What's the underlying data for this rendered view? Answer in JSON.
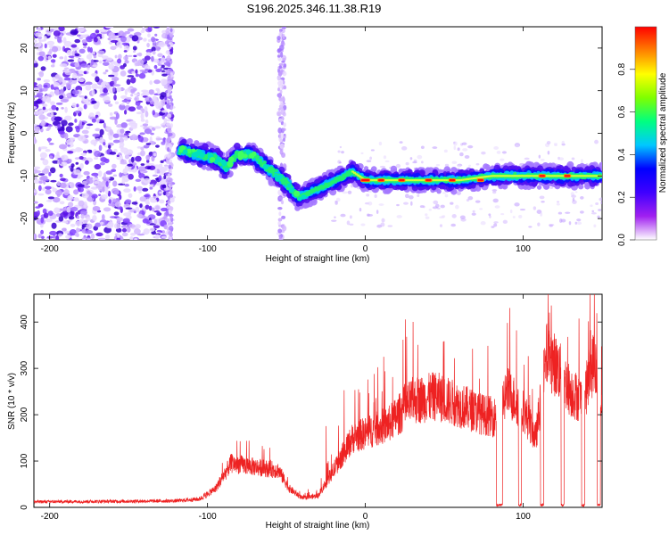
{
  "title": "S196.2025.346.11.38.R19",
  "chart_data": [
    {
      "type": "heatmap",
      "xlabel": "Height of straight line (km)",
      "ylabel": "Frequency (Hz)",
      "xlim": [
        -210,
        150
      ],
      "ylim": [
        -25,
        25
      ],
      "xticks": [
        -200,
        -100,
        0,
        100
      ],
      "yticks": [
        -20,
        -10,
        0,
        10,
        20
      ],
      "colorbar": {
        "label": "Normalized spectral amplitude",
        "range": [
          0,
          1
        ],
        "ticks": [
          "0.0",
          "0.2",
          "0.4",
          "0.6",
          "0.8"
        ],
        "stops": [
          "#ffffff",
          "#a020f0",
          "#3f00ff",
          "#0000ff",
          "#00c8ff",
          "#00ff80",
          "#7fff00",
          "#ffff00",
          "#ff8000",
          "#ff0000"
        ]
      },
      "ridge": [
        {
          "x": -118,
          "y": -4
        },
        {
          "x": -105,
          "y": -5
        },
        {
          "x": -95,
          "y": -6
        },
        {
          "x": -88,
          "y": -8
        },
        {
          "x": -82,
          "y": -5
        },
        {
          "x": -72,
          "y": -5
        },
        {
          "x": -62,
          "y": -8
        },
        {
          "x": -52,
          "y": -11
        },
        {
          "x": -42,
          "y": -15
        },
        {
          "x": -30,
          "y": -13
        },
        {
          "x": -18,
          "y": -11
        },
        {
          "x": -8,
          "y": -9
        },
        {
          "x": 0,
          "y": -11
        },
        {
          "x": 20,
          "y": -11
        },
        {
          "x": 40,
          "y": -11
        },
        {
          "x": 60,
          "y": -11
        },
        {
          "x": 80,
          "y": -10
        },
        {
          "x": 100,
          "y": -10
        },
        {
          "x": 120,
          "y": -10
        },
        {
          "x": 150,
          "y": -10
        }
      ],
      "peak_segments": [
        {
          "x": [
            -2,
            2
          ],
          "y": -11
        },
        {
          "x": 10,
          "y": -11
        },
        {
          "x": 23,
          "y": -11
        },
        {
          "x": 40,
          "y": -11
        },
        {
          "x": 55,
          "y": -11
        },
        {
          "x": 73,
          "y": -11
        },
        {
          "x": 112,
          "y": -10
        },
        {
          "x": 128,
          "y": -10
        }
      ]
    },
    {
      "type": "line",
      "xlabel": "Height of straight line (km)",
      "ylabel": "SNR (10 * v/v)",
      "xlim": [
        -210,
        150
      ],
      "ylim": [
        0,
        460
      ],
      "xticks": [
        -200,
        -100,
        0,
        100
      ],
      "yticks": [
        0,
        100,
        200,
        300,
        400
      ],
      "series": [
        {
          "name": "SNR",
          "color": "#ee2222",
          "envelope": [
            {
              "x": -210,
              "y": 12
            },
            {
              "x": -160,
              "y": 13
            },
            {
              "x": -120,
              "y": 14
            },
            {
              "x": -105,
              "y": 18
            },
            {
              "x": -95,
              "y": 40
            },
            {
              "x": -85,
              "y": 95
            },
            {
              "x": -75,
              "y": 90
            },
            {
              "x": -65,
              "y": 85
            },
            {
              "x": -55,
              "y": 80
            },
            {
              "x": -48,
              "y": 40
            },
            {
              "x": -40,
              "y": 20
            },
            {
              "x": -30,
              "y": 25
            },
            {
              "x": -22,
              "y": 70
            },
            {
              "x": -15,
              "y": 110
            },
            {
              "x": -8,
              "y": 150
            },
            {
              "x": 0,
              "y": 160
            },
            {
              "x": 15,
              "y": 180
            },
            {
              "x": 30,
              "y": 230
            },
            {
              "x": 45,
              "y": 240
            },
            {
              "x": 60,
              "y": 220
            },
            {
              "x": 75,
              "y": 200
            },
            {
              "x": 82,
              "y": 195
            },
            {
              "x": 90,
              "y": 250
            },
            {
              "x": 100,
              "y": 210
            },
            {
              "x": 108,
              "y": 150
            },
            {
              "x": 115,
              "y": 330
            },
            {
              "x": 122,
              "y": 300
            },
            {
              "x": 130,
              "y": 250
            },
            {
              "x": 138,
              "y": 230
            },
            {
              "x": 145,
              "y": 320
            },
            {
              "x": 150,
              "y": 200
            }
          ],
          "dropouts": [
            {
              "x": [
                83,
                87
              ]
            },
            {
              "x": [
                97,
                99
              ]
            },
            {
              "x": [
                111,
                113
              ]
            },
            {
              "x": [
                124,
                126
              ]
            },
            {
              "x": [
                137,
                139
              ]
            },
            {
              "x": [
                147,
                149
              ]
            }
          ]
        }
      ]
    }
  ]
}
